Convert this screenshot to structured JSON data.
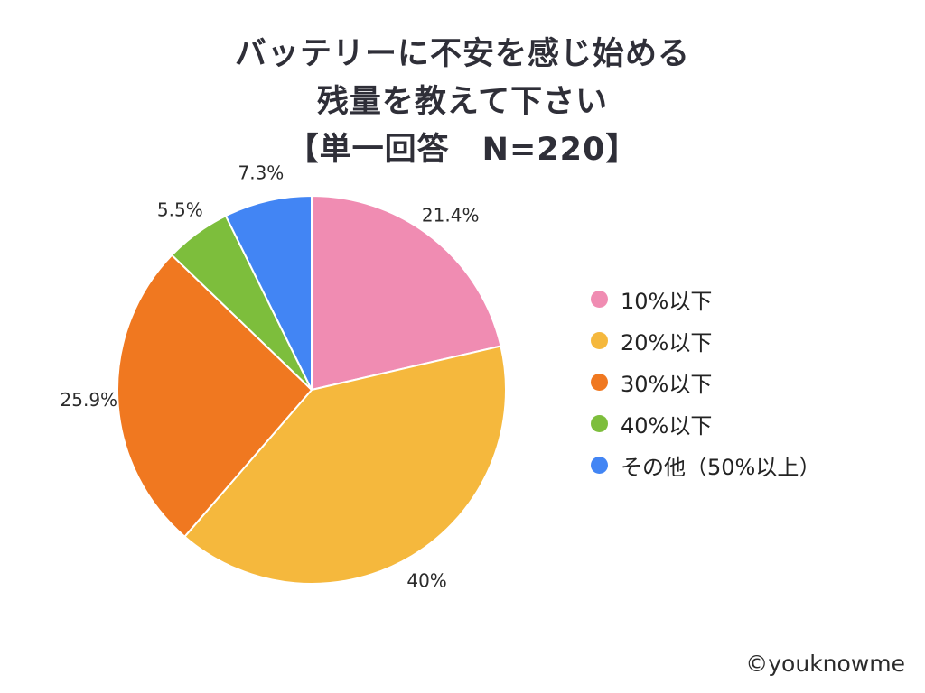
{
  "title": {
    "line1": "バッテリーに不安を感じ始める",
    "line2": "残量を教えて下さい",
    "line3": "【単一回答　N=220】"
  },
  "watermark": "©youknowme",
  "chart_data": {
    "type": "pie",
    "title": "バッテリーに不安を感じ始める 残量を教えて下さい【単一回答 N=220】",
    "sample_note": "N=220",
    "start_angle_deg": 0,
    "direction": "clockwise",
    "legend_position": "right",
    "segments": [
      {
        "label": "10%以下",
        "value": 21.4,
        "display": "21.4%",
        "color": "#f08cb2"
      },
      {
        "label": "20%以下",
        "value": 40,
        "display": "40%",
        "color": "#f5b83d"
      },
      {
        "label": "30%以下",
        "value": 25.9,
        "display": "25.9%",
        "color": "#f07820"
      },
      {
        "label": "40%以下",
        "value": 5.5,
        "display": "5.5%",
        "color": "#7dbe3c"
      },
      {
        "label": "その他（50%以上）",
        "value": 7.3,
        "display": "7.3%",
        "color": "#4285f4"
      }
    ]
  }
}
